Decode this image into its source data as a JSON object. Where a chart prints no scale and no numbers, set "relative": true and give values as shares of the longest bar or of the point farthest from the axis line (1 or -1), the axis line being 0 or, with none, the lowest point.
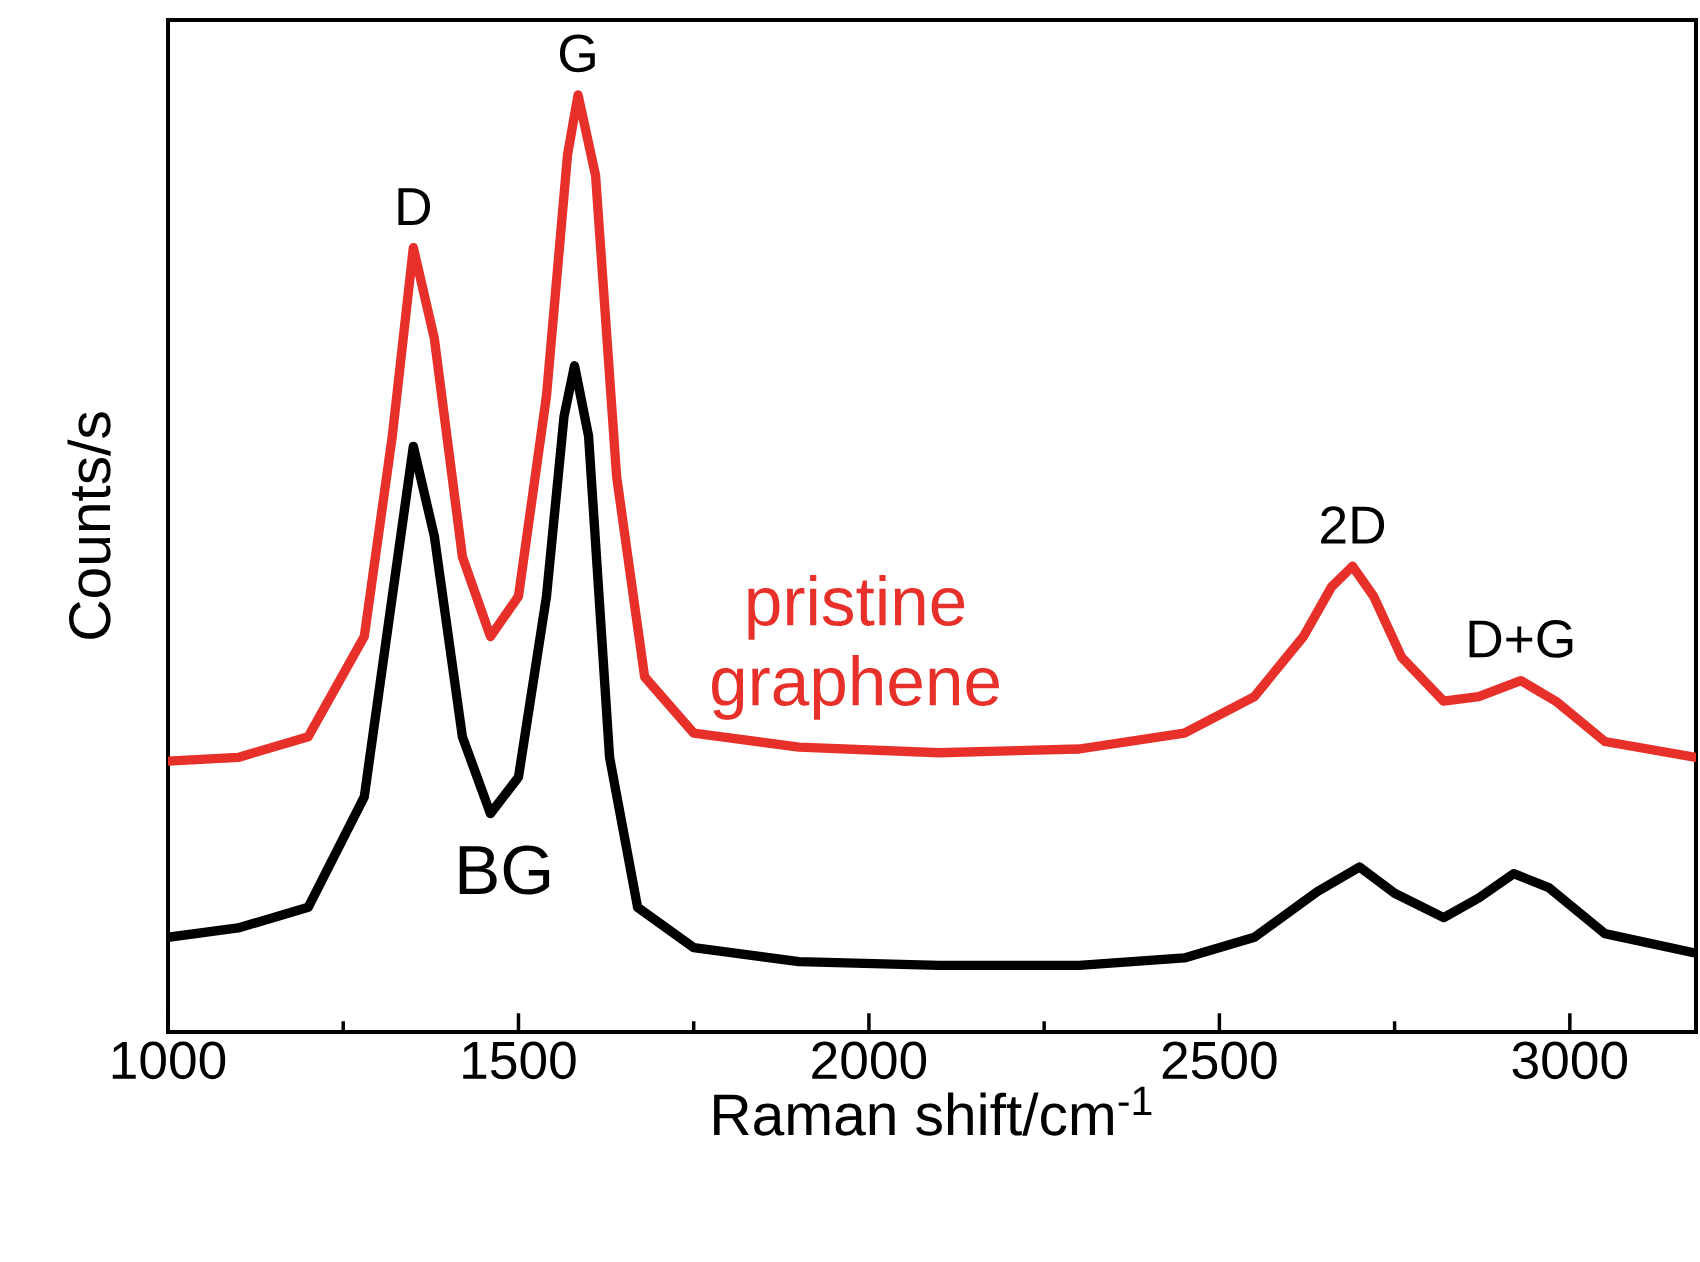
{
  "chart_data": {
    "type": "line",
    "relative": true,
    "xlabel": "Raman shift/cm$^{-1}$",
    "ylabel": "Counts/s",
    "xlim": [
      1000,
      3180
    ],
    "xticks": [
      1000,
      1500,
      2000,
      2500,
      3000
    ],
    "tick_labels": "x",
    "grid": false,
    "legend": false,
    "marker": "none",
    "line_style": "solid",
    "series": [
      {
        "name": "pristine graphene",
        "color": "#e8302a",
        "x": [
          1000,
          1100,
          1200,
          1280,
          1320,
          1350,
          1380,
          1420,
          1460,
          1500,
          1540,
          1570,
          1585,
          1610,
          1640,
          1680,
          1750,
          1900,
          2100,
          2300,
          2450,
          2550,
          2620,
          2660,
          2690,
          2720,
          2760,
          2820,
          2870,
          2930,
          2980,
          3050,
          3180
        ],
        "values": [
          0.289,
          0.293,
          0.315,
          0.422,
          0.636,
          0.837,
          0.74,
          0.507,
          0.422,
          0.465,
          0.679,
          0.936,
          1.0,
          0.914,
          0.593,
          0.379,
          0.319,
          0.304,
          0.298,
          0.302,
          0.319,
          0.358,
          0.422,
          0.475,
          0.497,
          0.465,
          0.4,
          0.353,
          0.358,
          0.375,
          0.353,
          0.31,
          0.293
        ]
      },
      {
        "name": "BG",
        "color": "#000000",
        "x": [
          1000,
          1100,
          1200,
          1280,
          1320,
          1350,
          1380,
          1420,
          1460,
          1500,
          1540,
          1565,
          1580,
          1600,
          1630,
          1670,
          1750,
          1900,
          2100,
          2300,
          2450,
          2550,
          2640,
          2700,
          2750,
          2820,
          2870,
          2920,
          2970,
          3050,
          3180
        ],
        "values": [
          0.101,
          0.111,
          0.133,
          0.251,
          0.465,
          0.625,
          0.529,
          0.315,
          0.233,
          0.272,
          0.465,
          0.657,
          0.711,
          0.636,
          0.293,
          0.133,
          0.09,
          0.075,
          0.071,
          0.071,
          0.079,
          0.101,
          0.15,
          0.176,
          0.148,
          0.122,
          0.143,
          0.169,
          0.154,
          0.105,
          0.084
        ]
      }
    ],
    "annotations": [
      {
        "text": "D",
        "x": 1350,
        "y": 0.837
      },
      {
        "text": "G",
        "x": 1585,
        "y": 1.0
      },
      {
        "text": "2D",
        "x": 2690,
        "y": 0.497
      },
      {
        "text": "D+G",
        "x": 2930,
        "y": 0.375
      }
    ]
  }
}
